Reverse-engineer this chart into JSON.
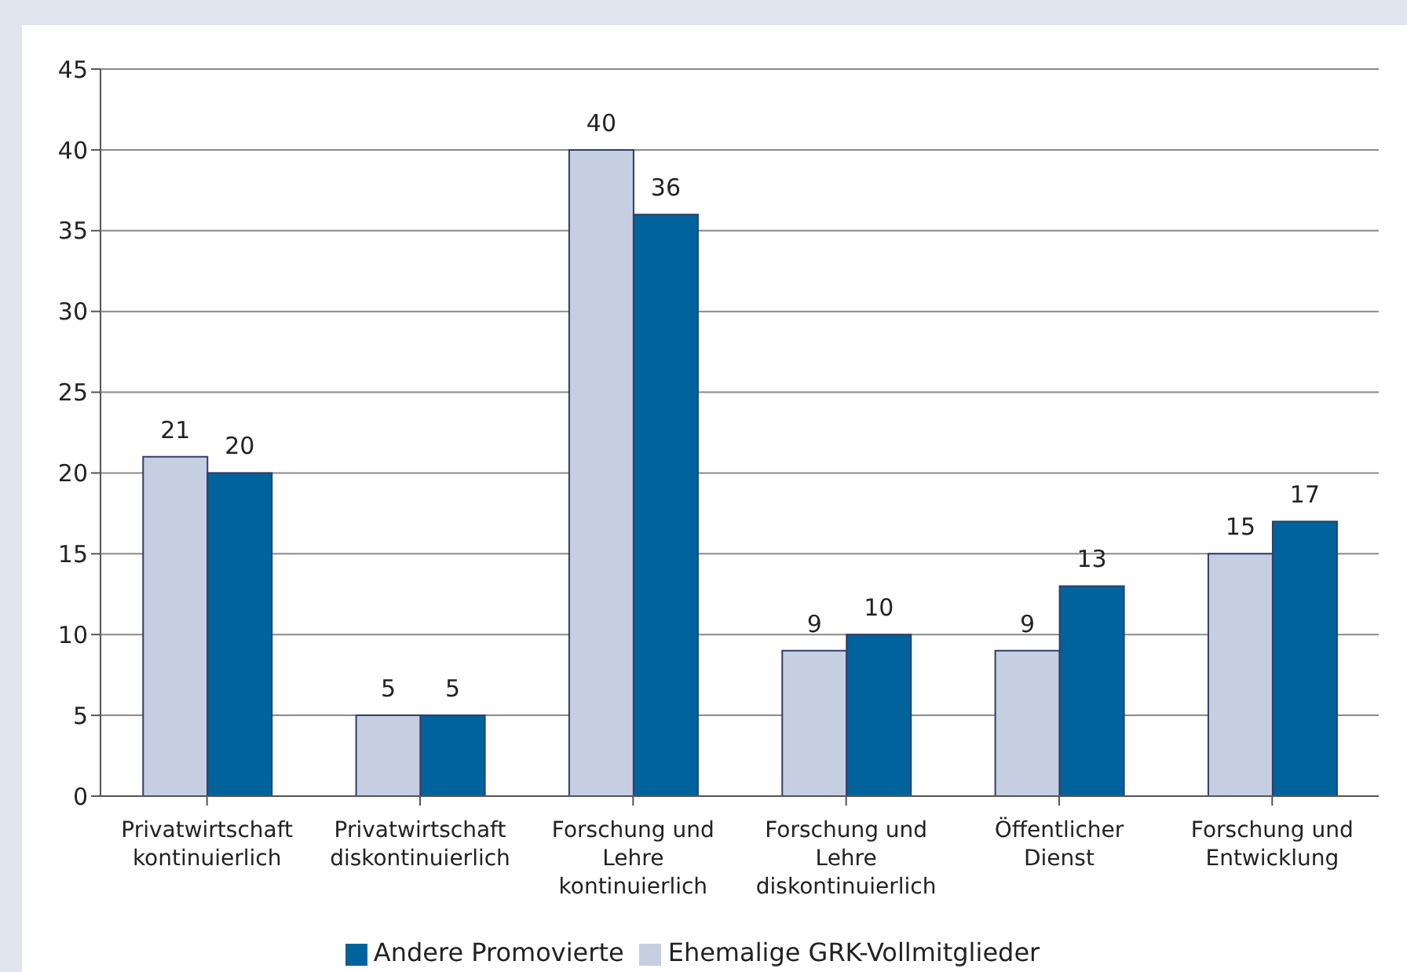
{
  "chart_data": {
    "type": "bar",
    "categories": [
      "Privatwirtschaft kontinuierlich",
      "Privatwirtschaft diskontinuierlich",
      "Forschung und Lehre kontinuierlich",
      "Forschung und Lehre diskontinuierlich",
      "Öffentlicher Dienst",
      "Forschung und Entwicklung"
    ],
    "series": [
      {
        "name": "Ehemalige GRK-Vollmitglieder",
        "color": "#c6cee2",
        "values": [
          21,
          5,
          40,
          9,
          9,
          15
        ]
      },
      {
        "name": "Andere Promovierte",
        "color": "#00639c",
        "values": [
          20,
          5,
          36,
          10,
          13,
          17
        ]
      }
    ],
    "ylim": [
      0,
      45
    ],
    "yticks": [
      0,
      5,
      10,
      15,
      20,
      25,
      30,
      35,
      40,
      45
    ],
    "grid": "y",
    "legend": "bottom",
    "data_labels": true
  }
}
